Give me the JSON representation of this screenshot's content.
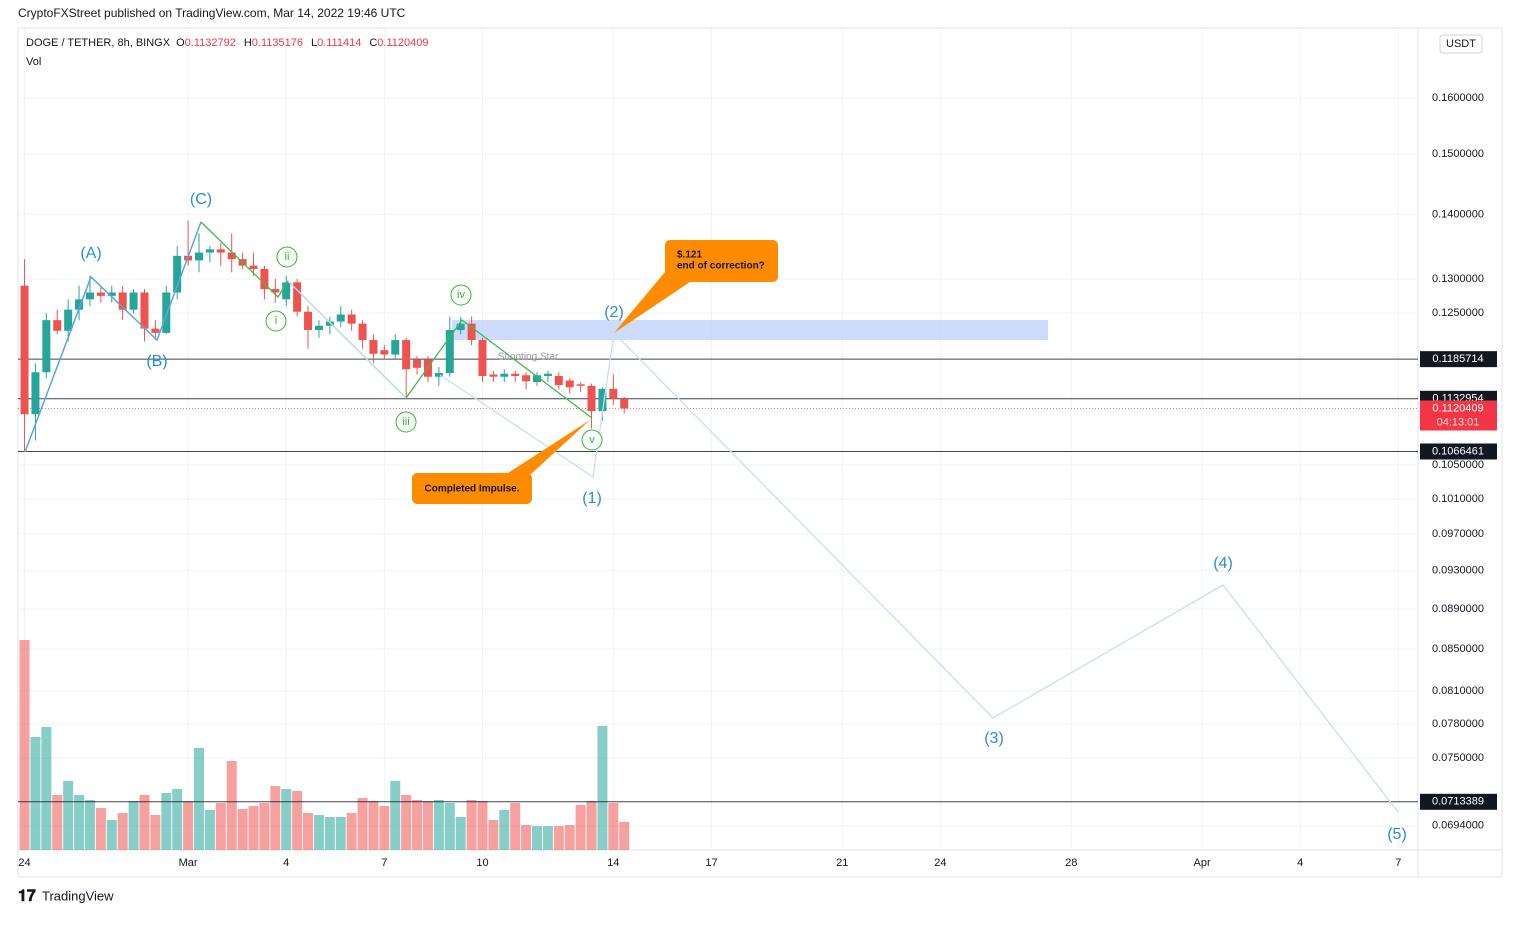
{
  "header": {
    "publisher": "CryptoFXStreet published on TradingView.com, Mar 14, 2022 19:46 UTC",
    "footer": "TradingView"
  },
  "chart_data": {
    "type": "candlestick",
    "title": "DOGE / TETHER, 8h, BINGX",
    "subtitle": "Vol",
    "ohlc_legend": [
      {
        "label": "O",
        "value": 0.1132792
      },
      {
        "label": "H",
        "value": 0.1135176
      },
      {
        "label": "L",
        "value": 0.111414
      },
      {
        "label": "C",
        "value": 0.1120409
      }
    ],
    "y_unit": "USDT",
    "log_scale": true,
    "grid": true,
    "ylim": [
      0.0675,
      0.1734
    ],
    "yticks": [
      {
        "value": 0.16,
        "label": "0.1600000"
      },
      {
        "value": 0.15,
        "label": "0.1500000"
      },
      {
        "value": 0.14,
        "label": "0.1400000"
      },
      {
        "value": 0.13,
        "label": "0.1300000"
      },
      {
        "value": 0.125,
        "label": "0.1250000"
      },
      {
        "value": 0.105,
        "label": "0.1050000"
      },
      {
        "value": 0.101,
        "label": "0.1010000"
      },
      {
        "value": 0.097,
        "label": "0.0970000"
      },
      {
        "value": 0.093,
        "label": "0.0930000"
      },
      {
        "value": 0.089,
        "label": "0.0890000"
      },
      {
        "value": 0.085,
        "label": "0.0850000"
      },
      {
        "value": 0.081,
        "label": "0.0810000"
      },
      {
        "value": 0.078,
        "label": "0.0780000"
      },
      {
        "value": 0.075,
        "label": "0.0750000"
      },
      {
        "value": 0.0694,
        "label": "0.0694000"
      }
    ],
    "xlim": [
      -0.2,
      42.6
    ],
    "xticks": [
      {
        "value": 0,
        "label": "24"
      },
      {
        "value": 5,
        "label": "Mar"
      },
      {
        "value": 8,
        "label": "4"
      },
      {
        "value": 11,
        "label": "7"
      },
      {
        "value": 14,
        "label": "10"
      },
      {
        "value": 18,
        "label": "14"
      },
      {
        "value": 21,
        "label": "17"
      },
      {
        "value": 25,
        "label": "21"
      },
      {
        "value": 28,
        "label": "24"
      },
      {
        "value": 32,
        "label": "28"
      },
      {
        "value": 36,
        "label": "Apr"
      },
      {
        "value": 39,
        "label": "4"
      },
      {
        "value": 42,
        "label": "7"
      }
    ],
    "up_color": "#26a69a",
    "down_color": "#ef5350",
    "open": [
      0.129,
      0.1113,
      0.1168,
      0.124,
      0.1225,
      0.1255,
      0.127,
      0.128,
      0.1275,
      0.128,
      0.1255,
      0.128,
      0.1228,
      0.1222,
      0.128,
      0.1335,
      0.1328,
      0.134,
      0.1345,
      0.134,
      0.133,
      0.132,
      0.1315,
      0.1285,
      0.127,
      0.1295,
      0.1252,
      0.1226,
      0.1232,
      0.1238,
      0.1248,
      0.1235,
      0.1212,
      0.1198,
      0.1192,
      0.1212,
      0.1185,
      0.1185,
      0.1162,
      0.1167,
      0.1226,
      0.1235,
      0.1212,
      0.1165,
      0.1162,
      0.1166,
      0.1164,
      0.1155,
      0.1163,
      0.1163,
      0.1157,
      0.1152,
      0.115,
      0.1117,
      0.1146,
      0.1132792
    ],
    "high": [
      0.133,
      0.118,
      0.125,
      0.1255,
      0.127,
      0.129,
      0.1305,
      0.129,
      0.129,
      0.129,
      0.1285,
      0.1285,
      0.124,
      0.129,
      0.135,
      0.139,
      0.137,
      0.135,
      0.1355,
      0.137,
      0.134,
      0.134,
      0.132,
      0.13,
      0.1305,
      0.13,
      0.126,
      0.124,
      0.1245,
      0.126,
      0.1255,
      0.124,
      0.122,
      0.1205,
      0.122,
      0.1215,
      0.119,
      0.119,
      0.1175,
      0.1245,
      0.1245,
      0.1245,
      0.1215,
      0.117,
      0.1172,
      0.117,
      0.1168,
      0.1168,
      0.117,
      0.1168,
      0.116,
      0.1155,
      0.1153,
      0.1148,
      0.1165,
      0.1135176
    ],
    "low": [
      0.1066,
      0.108,
      0.116,
      0.122,
      0.121,
      0.124,
      0.126,
      0.1265,
      0.1265,
      0.124,
      0.125,
      0.121,
      0.1212,
      0.122,
      0.127,
      0.132,
      0.131,
      0.1325,
      0.132,
      0.131,
      0.1315,
      0.1305,
      0.127,
      0.1265,
      0.126,
      0.1245,
      0.12,
      0.1215,
      0.122,
      0.123,
      0.1225,
      0.12,
      0.118,
      0.1185,
      0.1185,
      0.1135,
      0.1165,
      0.1155,
      0.115,
      0.1162,
      0.122,
      0.1205,
      0.1155,
      0.1155,
      0.1155,
      0.1155,
      0.1145,
      0.115,
      0.1155,
      0.1145,
      0.114,
      0.1142,
      0.1095,
      0.1105,
      0.1125,
      0.111414
    ],
    "close": [
      0.1113,
      0.1168,
      0.124,
      0.1225,
      0.1255,
      0.127,
      0.128,
      0.1275,
      0.128,
      0.1255,
      0.128,
      0.1228,
      0.1222,
      0.128,
      0.1335,
      0.1328,
      0.134,
      0.1345,
      0.134,
      0.133,
      0.132,
      0.1315,
      0.1285,
      0.128,
      0.1295,
      0.1252,
      0.1226,
      0.1232,
      0.1238,
      0.1248,
      0.1235,
      0.1212,
      0.1193,
      0.1192,
      0.1212,
      0.1172,
      0.1174,
      0.1162,
      0.1167,
      0.1226,
      0.1235,
      0.1212,
      0.1163,
      0.1162,
      0.1166,
      0.1163,
      0.1156,
      0.1164,
      0.1166,
      0.1151,
      0.1148,
      0.115,
      0.1117,
      0.1146,
      0.1133,
      0.1120409
    ],
    "volume": [
      210,
      113,
      123,
      55,
      69,
      55,
      50,
      42,
      30,
      37,
      49,
      55,
      35,
      57,
      61,
      49,
      102,
      40,
      47,
      89,
      41,
      44,
      47,
      64,
      61,
      59,
      37,
      35,
      33,
      33,
      37,
      52,
      49,
      44,
      69,
      55,
      50,
      49,
      50,
      47,
      33,
      50,
      49,
      30,
      40,
      47,
      25,
      24,
      24,
      24,
      25,
      45,
      49,
      124,
      47,
      28
    ],
    "price_lines": [
      {
        "value": 0.1185714,
        "color": "#131722"
      },
      {
        "value": 0.1132954,
        "color": "#131722"
      },
      {
        "value": 0.1066461,
        "color": "#131722"
      },
      {
        "value": 0.0713389,
        "color": "#131722"
      }
    ],
    "last_price": {
      "value": 0.1120409,
      "countdown": "04:13:01",
      "color": "#f23645"
    },
    "annotations": {
      "waves": [
        "(A)",
        "(B)",
        "(C)",
        "i",
        "ii",
        "iii",
        "iv",
        "v",
        "(1)",
        "(2)",
        "(3)",
        "(4)",
        "(5)"
      ],
      "callouts": [
        "$.121",
        "end of correction?",
        "Completed Impulse.",
        "Shooting Star"
      ]
    }
  }
}
